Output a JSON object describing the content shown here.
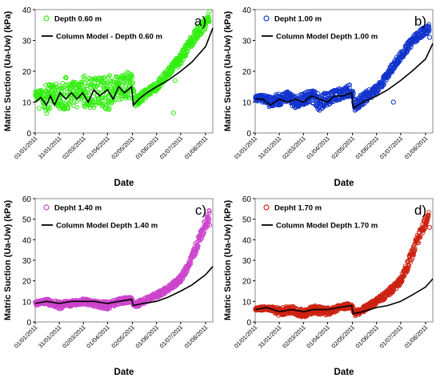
{
  "chart_data": [
    {
      "type": "scatter",
      "panel_label": "a)",
      "xlabel": "Date",
      "ylabel": "Matric Suction (Ua-Uw) (kPa)",
      "ylim": [
        0,
        40
      ],
      "yticks": [
        0,
        10,
        20,
        30,
        40
      ],
      "xlim": [
        "2011-01-01",
        "2011-08-10"
      ],
      "xticks": [
        "01/01/2011",
        "31/01/2011",
        "02/03/2011",
        "01/04/2011",
        "02/05/2011",
        "01/06/2011",
        "01/07/2011",
        "01/08/2011"
      ],
      "series": [
        {
          "name": "Depth 0.60 m",
          "kind": "markers",
          "color": "#33ee11",
          "band_x": [
            "2011-01-01",
            "2011-01-08",
            "2011-01-15",
            "2011-01-20",
            "2011-01-25",
            "2011-02-01",
            "2011-02-08",
            "2011-02-15",
            "2011-02-20",
            "2011-02-25",
            "2011-03-02",
            "2011-03-08",
            "2011-03-15",
            "2011-03-20",
            "2011-03-25",
            "2011-04-01",
            "2011-04-08",
            "2011-04-15",
            "2011-04-20",
            "2011-04-25",
            "2011-05-02",
            "2011-05-05",
            "2011-05-12",
            "2011-05-20",
            "2011-06-01",
            "2011-06-10",
            "2011-06-20",
            "2011-07-01",
            "2011-07-10",
            "2011-07-20",
            "2011-07-30",
            "2011-08-06"
          ],
          "band_y": [
            12,
            12.5,
            11,
            12,
            13,
            12,
            12.5,
            13,
            12,
            13,
            14,
            12,
            13,
            14,
            13,
            13,
            14,
            14.5,
            15,
            15,
            15,
            10,
            11.5,
            13,
            15,
            18,
            21,
            24,
            28,
            32,
            35,
            38
          ],
          "band_spread": [
            1.5,
            1.5,
            5,
            4,
            3,
            5,
            6,
            4,
            5,
            3,
            5,
            6,
            5,
            4,
            5,
            6,
            5,
            4,
            4,
            5,
            4,
            2,
            2,
            1.5,
            1.5,
            1.5,
            1.5,
            2,
            2,
            2,
            2,
            2
          ],
          "outliers": [
            {
              "x": "2011-01-06",
              "y": 8
            },
            {
              "x": "2011-06-22",
              "y": 6.5
            },
            {
              "x": "2011-06-24",
              "y": 17
            }
          ]
        },
        {
          "name": "Column Model - Depth 0.60 m",
          "kind": "line",
          "color": "#000000",
          "x": [
            "2011-01-01",
            "2011-01-08",
            "2011-01-15",
            "2011-01-20",
            "2011-01-25",
            "2011-02-01",
            "2011-02-08",
            "2011-02-15",
            "2011-02-22",
            "2011-03-01",
            "2011-03-08",
            "2011-03-15",
            "2011-03-22",
            "2011-04-01",
            "2011-04-08",
            "2011-04-15",
            "2011-04-22",
            "2011-05-01",
            "2011-05-03",
            "2011-05-10",
            "2011-05-20",
            "2011-06-01",
            "2011-06-15",
            "2011-07-01",
            "2011-07-15",
            "2011-08-01",
            "2011-08-10"
          ],
          "y": [
            10,
            11.5,
            9,
            12,
            9,
            13,
            11,
            13,
            11,
            13,
            10,
            14,
            12,
            14,
            11,
            15,
            13,
            15,
            9,
            11,
            13,
            15,
            17,
            20,
            23,
            28,
            34
          ]
        }
      ]
    },
    {
      "type": "scatter",
      "panel_label": "b)",
      "xlabel": "Date",
      "ylabel": "Matric Suction (Ua-Uw) (kPa)",
      "ylim": [
        0,
        40
      ],
      "yticks": [
        0,
        10,
        20,
        30,
        40
      ],
      "xlim": [
        "2011-01-01",
        "2011-08-10"
      ],
      "xticks": [
        "01/01/2011",
        "31/01/2011",
        "02/03/2011",
        "01/04/2011",
        "02/05/2011",
        "01/06/2011",
        "01/07/2011",
        "01/08/2011"
      ],
      "series": [
        {
          "name": "Depht 1.00 m",
          "kind": "markers",
          "color": "#1133cc",
          "band_x": [
            "2011-01-01",
            "2011-01-10",
            "2011-01-20",
            "2011-01-31",
            "2011-02-10",
            "2011-02-20",
            "2011-03-02",
            "2011-03-12",
            "2011-03-22",
            "2011-04-01",
            "2011-04-10",
            "2011-04-20",
            "2011-05-01",
            "2011-05-05",
            "2011-05-15",
            "2011-06-01",
            "2011-06-10",
            "2011-06-20",
            "2011-07-01",
            "2011-07-10",
            "2011-07-20",
            "2011-07-30",
            "2011-08-06"
          ],
          "band_y": [
            11,
            11.5,
            10,
            11,
            11.5,
            10,
            11,
            12,
            10,
            11,
            12,
            13,
            14,
            9,
            11,
            14,
            17,
            21,
            25,
            28,
            31,
            33,
            34
          ],
          "band_spread": [
            1,
            1,
            2,
            2,
            2,
            2,
            2,
            2,
            3,
            2,
            2,
            2,
            2,
            2,
            2,
            1.5,
            1.5,
            1.5,
            1.5,
            1.5,
            1.5,
            1.5,
            1.5
          ],
          "outliers": [
            {
              "x": "2011-01-10",
              "y": 10
            },
            {
              "x": "2011-02-06",
              "y": 11
            },
            {
              "x": "2011-06-22",
              "y": 10
            },
            {
              "x": "2011-08-06",
              "y": 31
            }
          ]
        },
        {
          "name": "Column Model Depth 1.00 m",
          "kind": "line",
          "color": "#000000",
          "x": [
            "2011-01-01",
            "2011-01-10",
            "2011-01-20",
            "2011-01-31",
            "2011-02-10",
            "2011-02-20",
            "2011-03-02",
            "2011-03-12",
            "2011-03-22",
            "2011-04-01",
            "2011-04-10",
            "2011-04-20",
            "2011-05-01",
            "2011-05-03",
            "2011-05-15",
            "2011-06-01",
            "2011-06-15",
            "2011-07-01",
            "2011-07-15",
            "2011-08-01",
            "2011-08-10"
          ],
          "y": [
            11,
            11,
            9,
            11,
            10,
            11,
            10,
            12,
            11,
            10,
            12,
            12,
            13,
            8,
            10,
            12,
            14,
            17,
            20,
            24,
            29
          ]
        }
      ]
    },
    {
      "type": "scatter",
      "panel_label": "c)",
      "xlabel": "Date",
      "ylabel": "Matric Suction (Ua-Uw) (kPa)",
      "ylim": [
        0,
        60
      ],
      "yticks": [
        0,
        10,
        20,
        30,
        40,
        50,
        60
      ],
      "xlim": [
        "2011-01-01",
        "2011-08-10"
      ],
      "xticks": [
        "01/01/2011",
        "31/01/2011",
        "02/03/2011",
        "01/04/2011",
        "02/05/2011",
        "01/06/2011",
        "01/07/2011",
        "01/08/2011"
      ],
      "series": [
        {
          "name": "Depht 1.40 m",
          "kind": "markers",
          "color": "#cc44cc",
          "band_x": [
            "2011-01-01",
            "2011-01-15",
            "2011-01-31",
            "2011-02-15",
            "2011-03-02",
            "2011-03-15",
            "2011-04-01",
            "2011-04-15",
            "2011-05-01",
            "2011-05-05",
            "2011-05-15",
            "2011-06-01",
            "2011-06-15",
            "2011-07-01",
            "2011-07-10",
            "2011-07-20",
            "2011-07-30",
            "2011-08-06"
          ],
          "band_y": [
            9,
            10,
            8,
            9,
            10,
            9,
            8,
            10,
            11,
            8,
            10,
            13,
            16,
            21,
            27,
            36,
            46,
            52
          ],
          "band_spread": [
            1,
            1.5,
            2,
            1.5,
            1.5,
            1.5,
            2,
            1.5,
            1.5,
            1.5,
            1.5,
            1.5,
            1.5,
            2,
            2,
            3,
            3,
            3
          ],
          "outliers": [
            {
              "x": "2011-08-06",
              "y": 47
            }
          ]
        },
        {
          "name": "Column Model Depth 1.40 m",
          "kind": "line",
          "color": "#000000",
          "x": [
            "2011-01-01",
            "2011-01-15",
            "2011-01-31",
            "2011-02-15",
            "2011-03-02",
            "2011-03-15",
            "2011-04-01",
            "2011-04-15",
            "2011-05-01",
            "2011-05-03",
            "2011-05-15",
            "2011-06-01",
            "2011-06-15",
            "2011-07-01",
            "2011-07-15",
            "2011-08-01",
            "2011-08-10"
          ],
          "y": [
            9,
            10,
            9,
            10,
            10,
            10,
            9,
            10,
            11,
            8,
            9,
            10,
            12,
            15,
            18,
            23,
            27
          ]
        }
      ]
    },
    {
      "type": "scatter",
      "panel_label": "d)",
      "xlabel": "Date",
      "ylabel": "Matric Suction (Ua-Uw) (kPa)",
      "ylim": [
        0,
        60
      ],
      "yticks": [
        0,
        10,
        20,
        30,
        40,
        50,
        60
      ],
      "xlim": [
        "2011-01-01",
        "2011-08-10"
      ],
      "xticks": [
        "01/01/2011",
        "31/01/2011",
        "02/03/2011",
        "01/04/2011",
        "02/05/2011",
        "01/06/2011",
        "01/07/2011",
        "01/08/2011"
      ],
      "series": [
        {
          "name": "Depht 1.70 m",
          "kind": "markers",
          "color": "#cc2211",
          "band_x": [
            "2011-01-01",
            "2011-01-15",
            "2011-01-31",
            "2011-02-15",
            "2011-03-02",
            "2011-03-15",
            "2011-04-01",
            "2011-04-15",
            "2011-05-01",
            "2011-05-05",
            "2011-05-15",
            "2011-06-01",
            "2011-06-15",
            "2011-07-01",
            "2011-07-10",
            "2011-07-20",
            "2011-07-30",
            "2011-08-05"
          ],
          "band_y": [
            6,
            7,
            5,
            6,
            4,
            6,
            5,
            7,
            8,
            4,
            6,
            10,
            14,
            20,
            28,
            38,
            47,
            52
          ],
          "band_spread": [
            1,
            1,
            2,
            2,
            2,
            2,
            2,
            1.5,
            1.5,
            1.5,
            1.5,
            1.5,
            2,
            2,
            3,
            3,
            3,
            2
          ],
          "outliers": [
            {
              "x": "2011-03-02",
              "y": 3
            },
            {
              "x": "2011-08-06",
              "y": 46
            }
          ]
        },
        {
          "name": "Column Model Depth 1.70 m",
          "kind": "line",
          "color": "#000000",
          "x": [
            "2011-01-01",
            "2011-01-15",
            "2011-01-31",
            "2011-02-15",
            "2011-03-02",
            "2011-03-15",
            "2011-04-01",
            "2011-04-15",
            "2011-05-01",
            "2011-05-03",
            "2011-05-15",
            "2011-06-01",
            "2011-06-15",
            "2011-07-01",
            "2011-07-15",
            "2011-08-01",
            "2011-08-10"
          ],
          "y": [
            6,
            7,
            5,
            6,
            5,
            6,
            6,
            7,
            8,
            4,
            5,
            7,
            8,
            10,
            13,
            17,
            21
          ]
        }
      ]
    }
  ]
}
